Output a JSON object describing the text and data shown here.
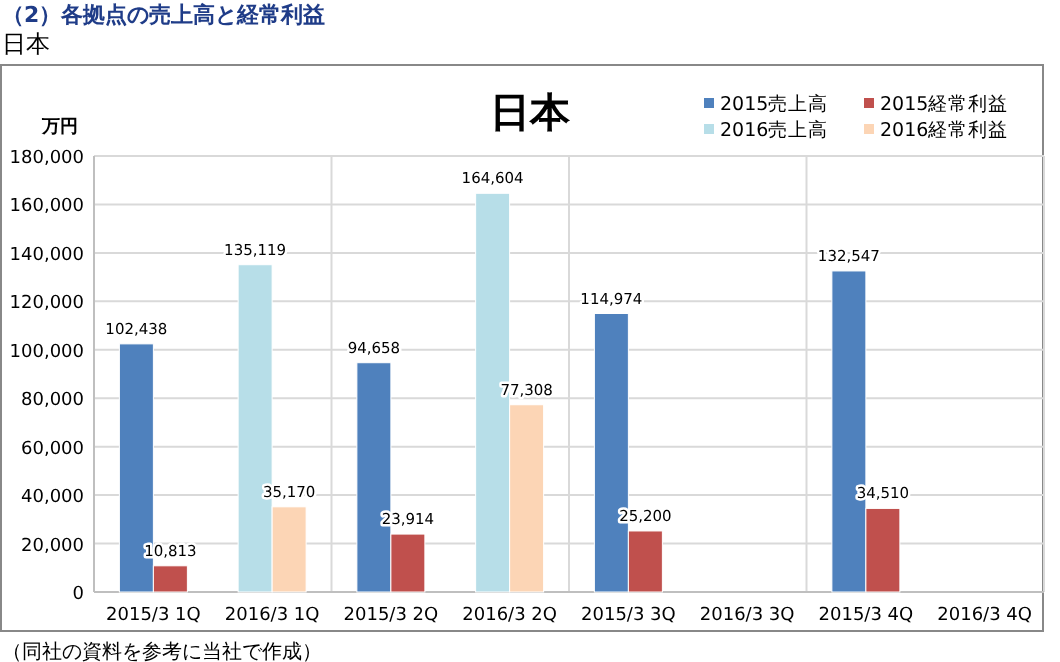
{
  "chart_data": {
    "type": "bar",
    "title": "日本",
    "subtitle": "日本",
    "ylabel": "万円",
    "annotations": [
      "（2）各拠点の売上高と経常利益",
      "（同社の資料を参考に当社で作成）"
    ],
    "categories": [
      "2015/3 1Q",
      "2016/3 1Q",
      "2015/3 2Q",
      "2016/3 2Q",
      "2015/3 3Q",
      "2016/3 3Q",
      "2015/3 4Q",
      "2016/3 4Q"
    ],
    "series": [
      {
        "name": "2015売上高",
        "color": "#4f81bd",
        "values": [
          102438,
          null,
          94658,
          null,
          114974,
          null,
          132547,
          null
        ],
        "value_labels": [
          "102,438",
          null,
          "94,658",
          null,
          "114,974",
          null,
          "132,547",
          null
        ]
      },
      {
        "name": "2015経常利益",
        "color": "#c0504d",
        "values": [
          10813,
          null,
          23914,
          null,
          25200,
          null,
          34510,
          null
        ],
        "value_labels": [
          "10,813",
          null,
          "23,914",
          null,
          "25,200",
          null,
          "34,510",
          null
        ]
      },
      {
        "name": "2016売上高",
        "color": "#b7dee8",
        "values": [
          null,
          135119,
          null,
          164604,
          null,
          null,
          null,
          null
        ],
        "value_labels": [
          null,
          "135,119",
          null,
          "164,604",
          null,
          null,
          null,
          null
        ]
      },
      {
        "name": "2016経常利益",
        "color": "#fcd5b5",
        "values": [
          null,
          35170,
          null,
          77308,
          null,
          null,
          null,
          null
        ],
        "value_labels": [
          null,
          "35,170",
          null,
          "77,308",
          null,
          null,
          null,
          null
        ]
      }
    ],
    "ylim": [
      0,
      180000
    ],
    "yticks": [
      {
        "value": 0,
        "label": "0"
      },
      {
        "value": 20000,
        "label": "20,000"
      },
      {
        "value": 40000,
        "label": "40,000"
      },
      {
        "value": 60000,
        "label": "60,000"
      },
      {
        "value": 80000,
        "label": "80,000"
      },
      {
        "value": 100000,
        "label": "100,000"
      },
      {
        "value": 120000,
        "label": "120,000"
      },
      {
        "value": 140000,
        "label": "140,000"
      },
      {
        "value": 160000,
        "label": "160,000"
      },
      {
        "value": 180000,
        "label": "180,000"
      }
    ],
    "grid": true,
    "legend": "top right"
  }
}
